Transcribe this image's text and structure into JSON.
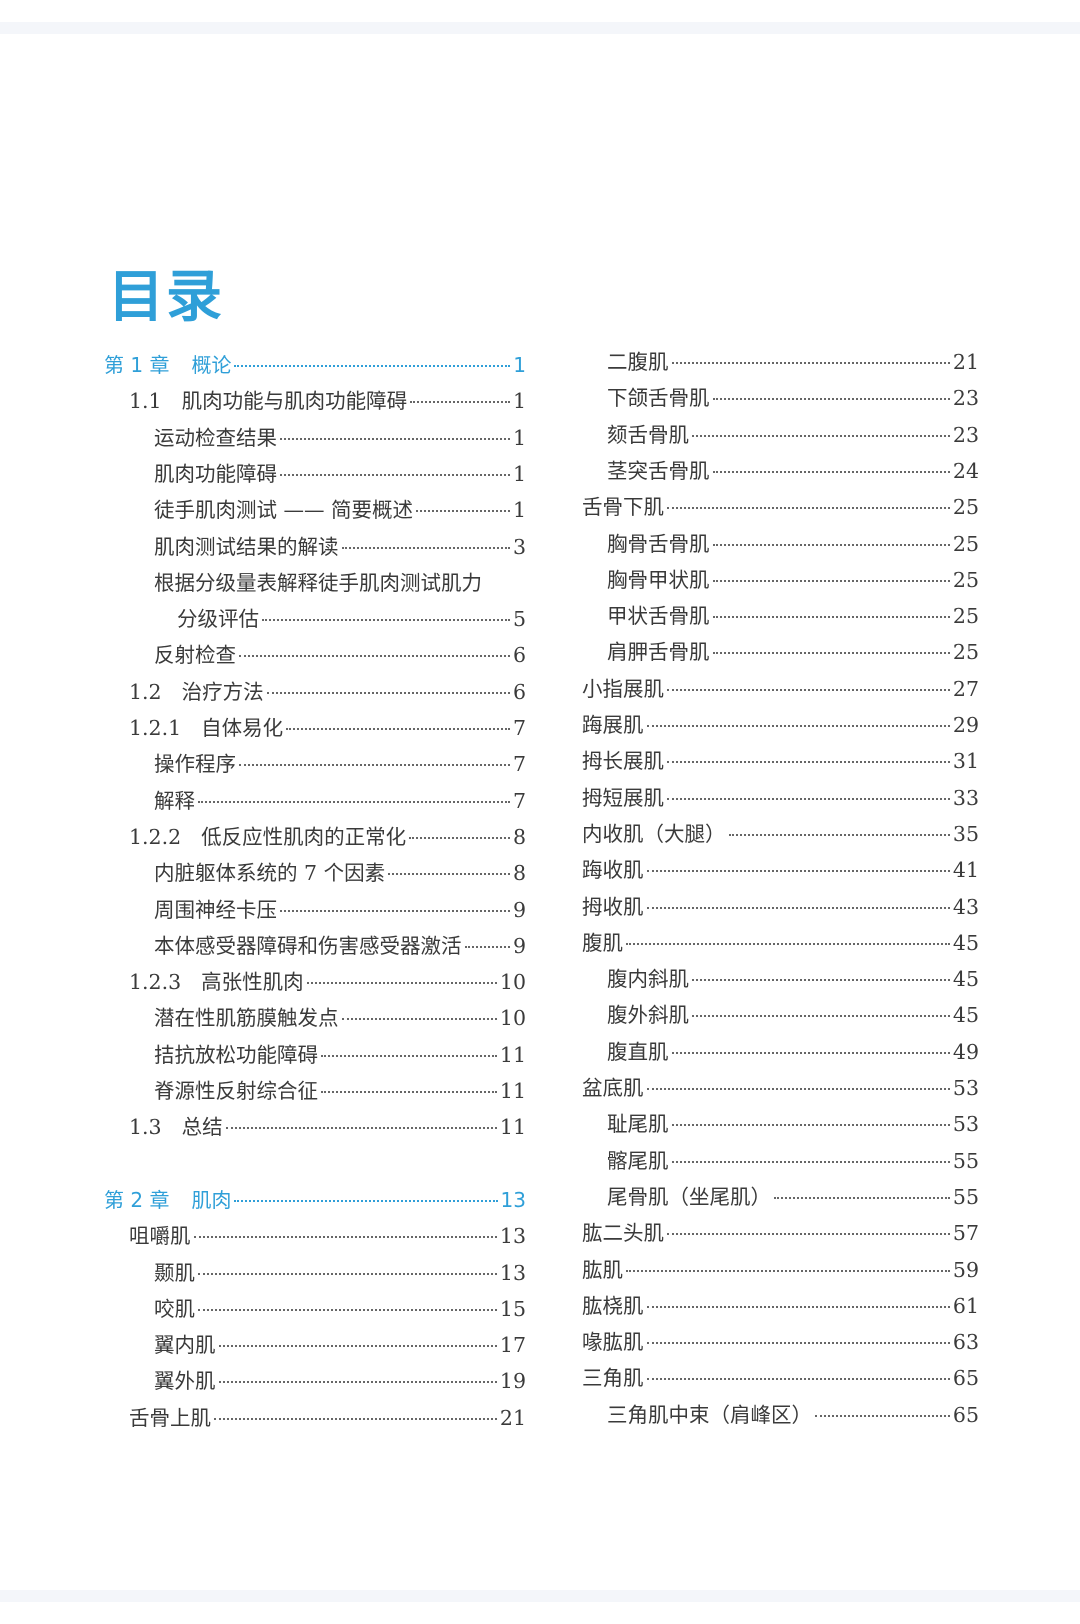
{
  "page_title": "目录",
  "colors": {
    "accent": "#2f9fd8",
    "text": "#3a3a3a",
    "leader": "#666666"
  },
  "toc": {
    "left": [
      {
        "type": "chapter",
        "num": "第 1 章",
        "title": "概论",
        "page": "1",
        "level": 0
      },
      {
        "type": "section",
        "num": "1.1",
        "title": "肌肉功能与肌肉功能障碍",
        "page": "1",
        "level": 1
      },
      {
        "type": "item",
        "title": "运动检查结果",
        "page": "1",
        "level": 2
      },
      {
        "type": "item",
        "title": "肌肉功能障碍",
        "page": "1",
        "level": 2
      },
      {
        "type": "item",
        "title": "徒手肌肉测试 —— 简要概述",
        "page": "1",
        "level": 2
      },
      {
        "type": "item",
        "title": "肌肉测试结果的解读",
        "page": "3",
        "level": 2
      },
      {
        "type": "item",
        "title": "根据分级量表解释徒手肌肉测试肌力",
        "cont": "分级评估",
        "page": "5",
        "level": 2
      },
      {
        "type": "item",
        "title": "反射检查",
        "page": "6",
        "level": 2
      },
      {
        "type": "section",
        "num": "1.2",
        "title": "治疗方法",
        "page": "6",
        "level": 1
      },
      {
        "type": "section",
        "num": "1.2.1",
        "title": "自体易化",
        "page": "7",
        "level": 1
      },
      {
        "type": "item",
        "title": "操作程序",
        "page": "7",
        "level": 2
      },
      {
        "type": "item",
        "title": "解释",
        "page": "7",
        "level": 2
      },
      {
        "type": "section",
        "num": "1.2.2",
        "title": "低反应性肌肉的正常化",
        "page": "8",
        "level": 1
      },
      {
        "type": "item",
        "title": "内脏躯体系统的 7 个因素",
        "page": "8",
        "level": 2
      },
      {
        "type": "item",
        "title": "周围神经卡压",
        "page": "9",
        "level": 2
      },
      {
        "type": "item",
        "title": "本体感受器障碍和伤害感受器激活",
        "page": "9",
        "level": 2
      },
      {
        "type": "section",
        "num": "1.2.3",
        "title": "高张性肌肉",
        "page": "10",
        "level": 1
      },
      {
        "type": "item",
        "title": "潜在性肌筋膜触发点",
        "page": "10",
        "level": 2
      },
      {
        "type": "item",
        "title": "拮抗放松功能障碍",
        "page": "11",
        "level": 2
      },
      {
        "type": "item",
        "title": "脊源性反射综合征",
        "page": "11",
        "level": 2
      },
      {
        "type": "section",
        "num": "1.3",
        "title": "总结",
        "page": "11",
        "level": 1
      },
      {
        "type": "chapter",
        "num": "第 2 章",
        "title": "肌肉",
        "page": "13",
        "level": 0
      },
      {
        "type": "item",
        "title": "咀嚼肌",
        "page": "13",
        "level": 1
      },
      {
        "type": "item",
        "title": "颞肌",
        "page": "13",
        "level": 2
      },
      {
        "type": "item",
        "title": "咬肌",
        "page": "15",
        "level": 2
      },
      {
        "type": "item",
        "title": "翼内肌",
        "page": "17",
        "level": 2
      },
      {
        "type": "item",
        "title": "翼外肌",
        "page": "19",
        "level": 2
      },
      {
        "type": "item",
        "title": "舌骨上肌",
        "page": "21",
        "level": 1
      }
    ],
    "right": [
      {
        "type": "item",
        "title": "二腹肌",
        "page": "21",
        "level": 2
      },
      {
        "type": "item",
        "title": "下颌舌骨肌",
        "page": "23",
        "level": 2
      },
      {
        "type": "item",
        "title": "颏舌骨肌",
        "page": "23",
        "level": 2
      },
      {
        "type": "item",
        "title": "茎突舌骨肌",
        "page": "24",
        "level": 2
      },
      {
        "type": "item",
        "title": "舌骨下肌",
        "page": "25",
        "level": 1
      },
      {
        "type": "item",
        "title": "胸骨舌骨肌",
        "page": "25",
        "level": 2
      },
      {
        "type": "item",
        "title": "胸骨甲状肌",
        "page": "25",
        "level": 2
      },
      {
        "type": "item",
        "title": "甲状舌骨肌",
        "page": "25",
        "level": 2
      },
      {
        "type": "item",
        "title": "肩胛舌骨肌",
        "page": "25",
        "level": 2
      },
      {
        "type": "item",
        "title": "小指展肌",
        "page": "27",
        "level": 1
      },
      {
        "type": "item",
        "title": "踇展肌",
        "page": "29",
        "level": 1
      },
      {
        "type": "item",
        "title": "拇长展肌",
        "page": "31",
        "level": 1
      },
      {
        "type": "item",
        "title": "拇短展肌",
        "page": "33",
        "level": 1
      },
      {
        "type": "item",
        "title": "内收肌（大腿）",
        "page": "35",
        "level": 1
      },
      {
        "type": "item",
        "title": "踇收肌",
        "page": "41",
        "level": 1
      },
      {
        "type": "item",
        "title": "拇收肌",
        "page": "43",
        "level": 1
      },
      {
        "type": "item",
        "title": "腹肌",
        "page": "45",
        "level": 1
      },
      {
        "type": "item",
        "title": "腹内斜肌",
        "page": "45",
        "level": 2
      },
      {
        "type": "item",
        "title": "腹外斜肌",
        "page": "45",
        "level": 2
      },
      {
        "type": "item",
        "title": "腹直肌",
        "page": "49",
        "level": 2
      },
      {
        "type": "item",
        "title": "盆底肌",
        "page": "53",
        "level": 1
      },
      {
        "type": "item",
        "title": "耻尾肌",
        "page": "53",
        "level": 2
      },
      {
        "type": "item",
        "title": "髂尾肌",
        "page": "55",
        "level": 2
      },
      {
        "type": "item",
        "title": "尾骨肌（坐尾肌）",
        "page": "55",
        "level": 2
      },
      {
        "type": "item",
        "title": "肱二头肌",
        "page": "57",
        "level": 1
      },
      {
        "type": "item",
        "title": "肱肌",
        "page": "59",
        "level": 1
      },
      {
        "type": "item",
        "title": "肱桡肌",
        "page": "61",
        "level": 1
      },
      {
        "type": "item",
        "title": "喙肱肌",
        "page": "63",
        "level": 1
      },
      {
        "type": "item",
        "title": "三角肌",
        "page": "65",
        "level": 1
      },
      {
        "type": "item",
        "title": "三角肌中束（肩峰区）",
        "page": "65",
        "level": 2
      }
    ]
  }
}
